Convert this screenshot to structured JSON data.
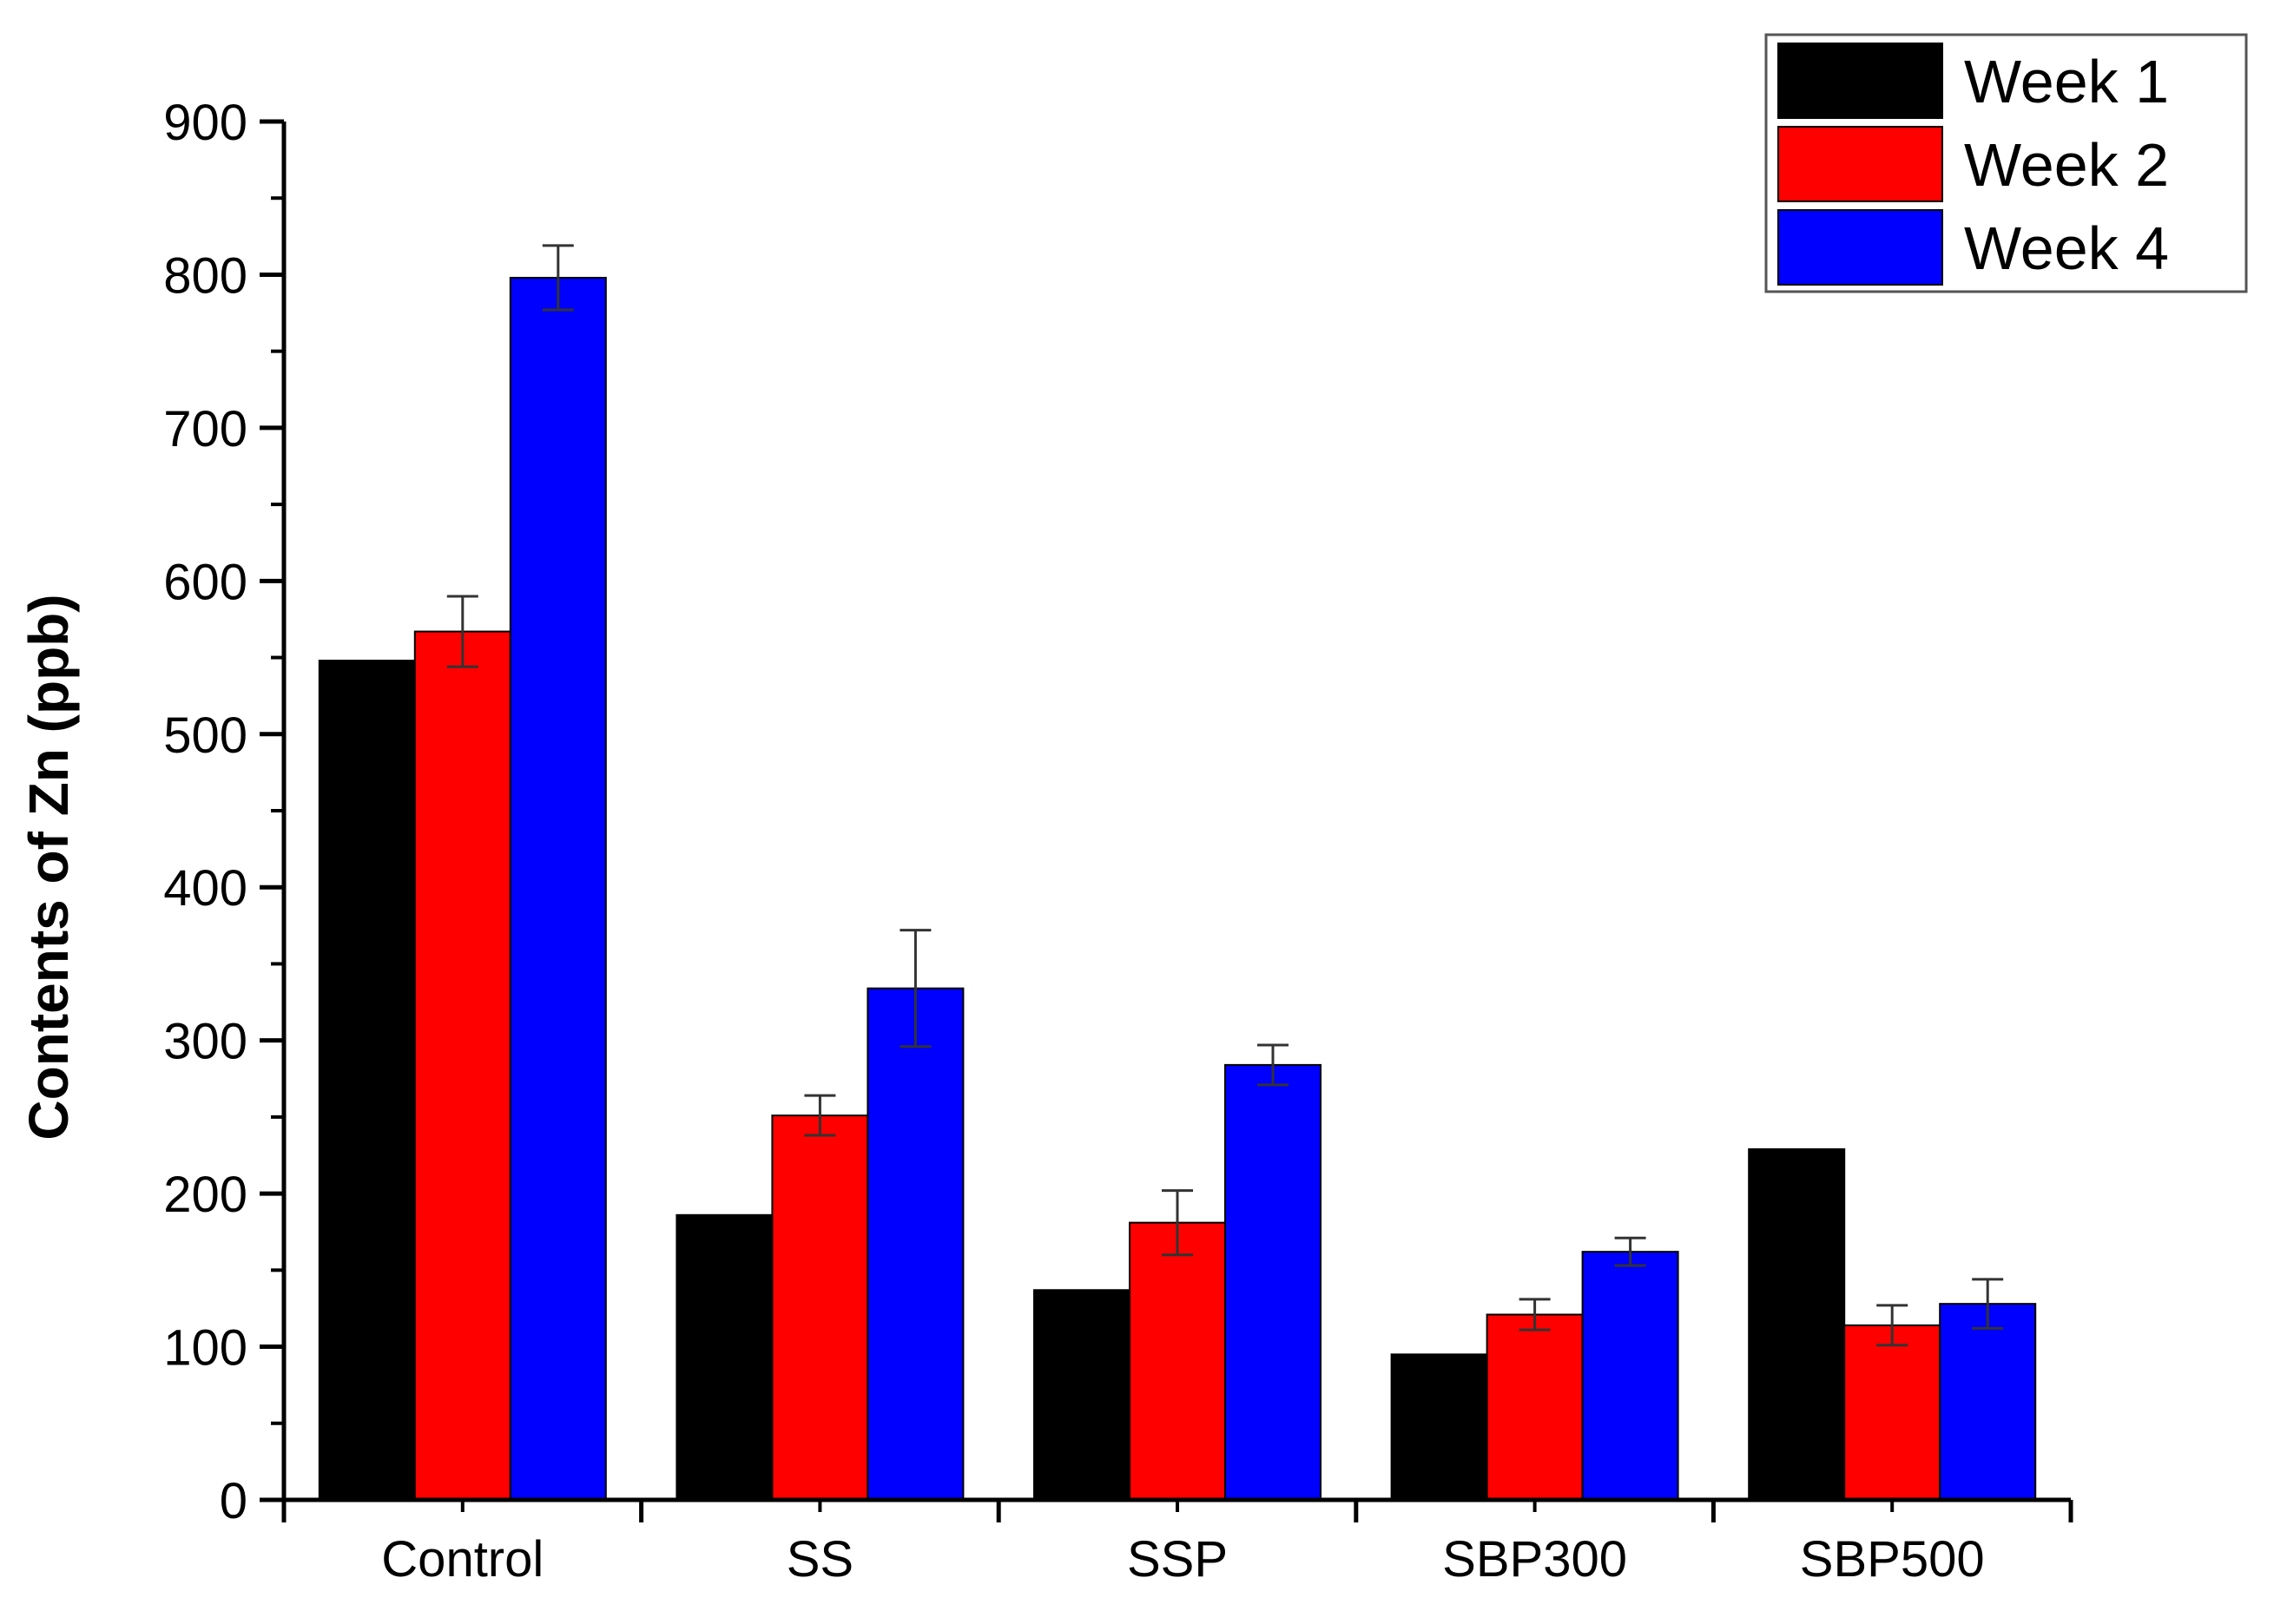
{
  "chart_data": {
    "type": "bar",
    "title": "",
    "xlabel": "",
    "ylabel": "Contents of Zn (ppb)",
    "ylim": [
      0,
      900
    ],
    "yticks": [
      0,
      100,
      200,
      300,
      400,
      500,
      600,
      700,
      800,
      900
    ],
    "categories": [
      "Control",
      "SS",
      "SSP",
      "SBP300",
      "SBP500"
    ],
    "series": [
      {
        "name": "Week 1",
        "color": "#000000",
        "values": [
          548,
          186,
          137,
          95,
          229
        ],
        "errors": [
          null,
          null,
          null,
          null,
          null
        ]
      },
      {
        "name": "Week 2",
        "color": "#ff0000",
        "values": [
          567,
          251,
          181,
          121,
          114
        ],
        "errors": [
          23,
          13,
          21,
          10,
          13
        ]
      },
      {
        "name": "Week 4",
        "color": "#0000ff",
        "values": [
          798,
          334,
          284,
          162,
          128
        ],
        "errors": [
          21,
          38,
          13,
          9,
          16
        ]
      }
    ],
    "legend_position": "top-right",
    "grid": false
  }
}
